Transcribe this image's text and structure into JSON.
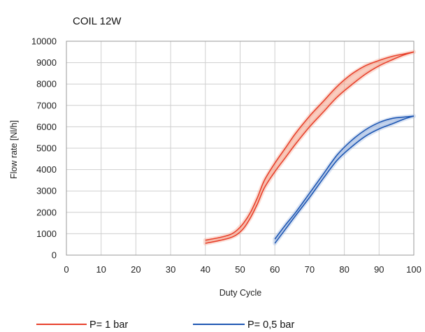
{
  "chart_data": {
    "type": "line",
    "title": "COIL 12W",
    "xlabel": "Duty Cycle",
    "ylabel": "Flow rate  [Nl/h]",
    "xlim": [
      0,
      100
    ],
    "ylim": [
      0,
      10000
    ],
    "x_ticks": [
      "0",
      "10",
      "20",
      "30",
      "40",
      "50",
      "60",
      "70",
      "80",
      "90",
      "100"
    ],
    "y_ticks": [
      "0",
      "1000",
      "2000",
      "3000",
      "4000",
      "5000",
      "6000",
      "7000",
      "8000",
      "9000",
      "10000"
    ],
    "grid": true,
    "legend_position": "bottom",
    "series": [
      {
        "name": "P= 1 bar",
        "color": "#e8412c",
        "band_color": "#f4a48c",
        "upper": {
          "x": [
            40,
            44,
            47,
            49,
            51,
            53,
            55,
            57,
            60,
            63,
            66,
            70,
            74,
            78,
            82,
            86,
            90,
            94,
            97,
            100
          ],
          "y": [
            700,
            820,
            950,
            1150,
            1500,
            2000,
            2700,
            3500,
            4300,
            5000,
            5700,
            6500,
            7200,
            7900,
            8450,
            8850,
            9100,
            9300,
            9400,
            9500
          ]
        },
        "lower": {
          "x": [
            40,
            44,
            47,
            49,
            51,
            53,
            55,
            57,
            60,
            63,
            66,
            70,
            74,
            78,
            82,
            86,
            90,
            94,
            97,
            100
          ],
          "y": [
            550,
            680,
            800,
            950,
            1250,
            1750,
            2400,
            3150,
            3900,
            4550,
            5200,
            6000,
            6700,
            7400,
            7950,
            8450,
            8850,
            9150,
            9350,
            9500
          ]
        }
      },
      {
        "name": "P= 0,5 bar",
        "color": "#1e57b3",
        "band_color": "#9bb5df",
        "upper": {
          "x": [
            60,
            63,
            66,
            70,
            74,
            78,
            82,
            86,
            90,
            94,
            97,
            100
          ],
          "y": [
            750,
            1400,
            2000,
            2900,
            3800,
            4700,
            5350,
            5850,
            6200,
            6400,
            6450,
            6500
          ]
        },
        "lower": {
          "x": [
            60,
            63,
            66,
            70,
            74,
            78,
            82,
            86,
            90,
            94,
            97,
            100
          ],
          "y": [
            550,
            1200,
            1850,
            2700,
            3600,
            4450,
            5050,
            5550,
            5900,
            6150,
            6350,
            6500
          ]
        }
      }
    ]
  }
}
